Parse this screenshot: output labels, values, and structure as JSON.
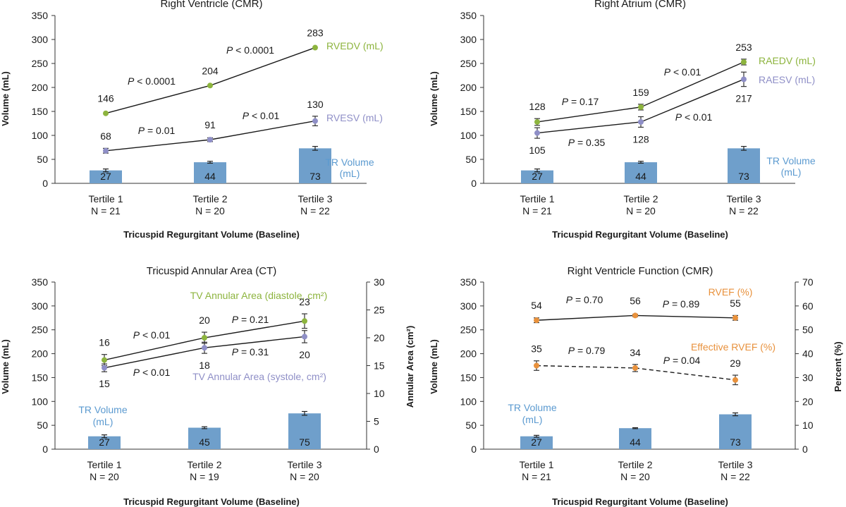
{
  "colors": {
    "bar": "#6f9fcb",
    "green": "#8db43e",
    "purple": "#8f8fc7",
    "orange": "#e8913c",
    "trLabel": "#5b9ad0",
    "text": "#1a1a1a"
  },
  "xlabel": "Tricuspid Regurgitant Volume (Baseline)",
  "chart_data": [
    {
      "type": "bar+line",
      "title": "Right Ventricle (CMR)",
      "ylabel": "Volume (mL)",
      "ylim": [
        0,
        350
      ],
      "yticks": [
        "0",
        "50",
        "100",
        "150",
        "200",
        "250",
        "300",
        "350"
      ],
      "categories": [
        [
          "Tertile 1",
          "N = 21"
        ],
        [
          "Tertile 2",
          "N = 20"
        ],
        [
          "Tertile 3",
          "N = 22"
        ]
      ],
      "bars": {
        "name": [
          "TR Volume",
          "(mL)"
        ],
        "values": [
          27,
          44,
          73
        ],
        "errors": [
          3,
          2,
          4
        ],
        "labels": [
          "27",
          "44",
          "73"
        ]
      },
      "series": [
        {
          "name": "RVEDV (mL)",
          "color": "green",
          "values": [
            146,
            204,
            283
          ],
          "errors": [
            0,
            0,
            0
          ],
          "labels": [
            "146",
            "204",
            "283"
          ],
          "label_pos": [
            "above",
            "above",
            "above"
          ],
          "pvalues": [
            "P < 0.0001",
            "P < 0.0001"
          ]
        },
        {
          "name": "RVESV (mL)",
          "color": "purple",
          "values": [
            68,
            91,
            130
          ],
          "errors": [
            5,
            4,
            10
          ],
          "labels": [
            "68",
            "91",
            "130"
          ],
          "label_pos": [
            "above",
            "above",
            "above"
          ],
          "pvalues": [
            "P = 0.01",
            "P < 0.01"
          ]
        }
      ]
    },
    {
      "type": "bar+line",
      "title": "Right Atrium (CMR)",
      "ylabel": "Volume (mL)",
      "ylim": [
        0,
        350
      ],
      "yticks": [
        "0",
        "50",
        "100",
        "150",
        "200",
        "250",
        "300",
        "350"
      ],
      "categories": [
        [
          "Tertile 1",
          "N = 21"
        ],
        [
          "Tertile 2",
          "N = 20"
        ],
        [
          "Tertile 3",
          "N = 22"
        ]
      ],
      "bars": {
        "name": [
          "TR Volume",
          "(mL)"
        ],
        "values": [
          27,
          44,
          73
        ],
        "errors": [
          3,
          2,
          4
        ],
        "labels": [
          "27",
          "44",
          "73"
        ]
      },
      "series": [
        {
          "name": "RAEDV (mL)",
          "color": "green",
          "values": [
            128,
            159,
            253
          ],
          "errors": [
            7,
            6,
            6
          ],
          "labels": [
            "128",
            "159",
            "253"
          ],
          "label_pos": [
            "above",
            "above",
            "above"
          ],
          "pvalues": [
            "P = 0.17",
            "P < 0.01"
          ]
        },
        {
          "name": "RAESV (mL)",
          "color": "purple",
          "values": [
            105,
            128,
            217
          ],
          "errors": [
            11,
            11,
            15
          ],
          "labels": [
            "105",
            "128",
            "217"
          ],
          "label_pos": [
            "below",
            "below",
            "below"
          ],
          "pvalues": [
            "P = 0.35",
            "P < 0.01"
          ]
        }
      ]
    },
    {
      "type": "bar+line",
      "title": "Tricuspid Annular Area (CT)",
      "ylabel": "Volume (mL)",
      "ylim": [
        0,
        350
      ],
      "yticks": [
        "0",
        "50",
        "100",
        "150",
        "200",
        "250",
        "300",
        "350"
      ],
      "ylabel2": "Annular Area (cm²)",
      "ylim2": [
        0,
        30
      ],
      "yticks2": [
        "0",
        "5",
        "10",
        "15",
        "20",
        "25",
        "30"
      ],
      "categories": [
        [
          "Tertile 1",
          "N = 20"
        ],
        [
          "Tertile 2",
          "N = 19"
        ],
        [
          "Tertile 3",
          "N = 20"
        ]
      ],
      "bars": {
        "name": [
          "TR Volume",
          "(mL)"
        ],
        "values": [
          27,
          45,
          75
        ],
        "errors": [
          3,
          2,
          4
        ],
        "labels": [
          "27",
          "45",
          "75"
        ]
      },
      "series": [
        {
          "name": "TV Annular Area (diastole, cm²)",
          "color": "green",
          "axis": 2,
          "values": [
            16,
            20,
            23
          ],
          "errors": [
            1,
            1,
            1.3
          ],
          "labels": [
            "16",
            "20",
            "23"
          ],
          "label_pos": [
            "above",
            "above",
            "above"
          ],
          "pvalues": [
            "P < 0.01",
            "P = 0.21"
          ]
        },
        {
          "name": "TV Annular Area (systole, cm²)",
          "color": "purple",
          "axis": 2,
          "values": [
            14.6,
            18.2,
            20.2
          ],
          "errors": [
            0.7,
            1,
            1.1
          ],
          "labels": [
            "15",
            "18",
            "20"
          ],
          "label_pos": [
            "below",
            "below",
            "below"
          ],
          "pvalues": [
            "P < 0.01",
            "P = 0.31"
          ]
        }
      ]
    },
    {
      "type": "bar+line",
      "title": "Right Ventricle Function (CMR)",
      "ylabel": "Volume (mL)",
      "ylim": [
        0,
        350
      ],
      "yticks": [
        "0",
        "50",
        "100",
        "150",
        "200",
        "250",
        "300",
        "350"
      ],
      "ylabel2": "Percent (%)",
      "ylim2": [
        0,
        70
      ],
      "yticks2": [
        "0",
        "10",
        "20",
        "30",
        "40",
        "50",
        "60",
        "70"
      ],
      "categories": [
        [
          "Tertile 1",
          "N = 21"
        ],
        [
          "Tertile 2",
          "N = 20"
        ],
        [
          "Tertile 3",
          "N = 22"
        ]
      ],
      "bars": {
        "name": [
          "TR Volume",
          "(mL)"
        ],
        "values": [
          27,
          44,
          73
        ],
        "errors": [
          2,
          1,
          3
        ],
        "labels": [
          "27",
          "44",
          "73"
        ]
      },
      "series": [
        {
          "name": "RVEF (%)",
          "color": "orange",
          "axis": 2,
          "values": [
            54,
            56,
            55
          ],
          "errors": [
            1,
            0.5,
            1
          ],
          "labels": [
            "54",
            "56",
            "55"
          ],
          "label_pos": [
            "above",
            "above",
            "above"
          ],
          "pvalues": [
            "P = 0.70",
            "P = 0.89"
          ]
        },
        {
          "name": "Effective RVEF (%)",
          "color": "orange",
          "axis": 2,
          "dashed": true,
          "values": [
            35,
            34,
            29
          ],
          "errors": [
            2,
            1.5,
            2
          ],
          "labels": [
            "35",
            "34",
            "29"
          ],
          "label_pos": [
            "above",
            "above",
            "above"
          ],
          "pvalues": [
            "P = 0.79",
            "P = 0.04"
          ]
        }
      ]
    }
  ]
}
